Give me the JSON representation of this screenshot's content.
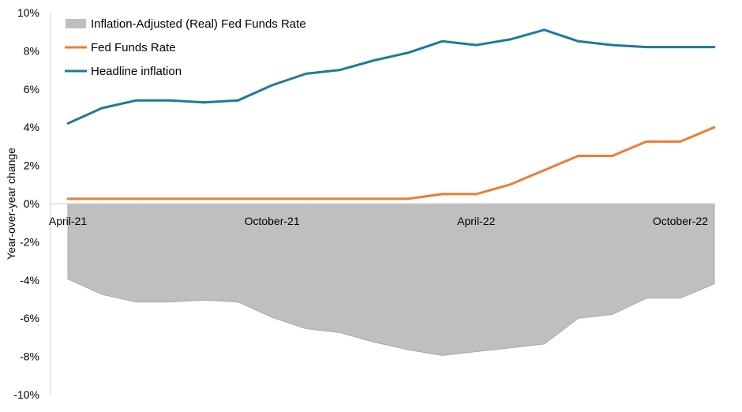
{
  "chart_data": {
    "type": "line",
    "ylabel": "Year-over-year change",
    "x": [
      "Apr-21",
      "May-21",
      "Jun-21",
      "Jul-21",
      "Aug-21",
      "Sep-21",
      "Oct-21",
      "Nov-21",
      "Dec-21",
      "Jan-22",
      "Feb-22",
      "Mar-22",
      "Apr-22",
      "May-22",
      "Jun-22",
      "Jul-22",
      "Aug-22",
      "Sep-22",
      "Oct-22",
      "Nov-22"
    ],
    "x_tick_labels": [
      {
        "index": 0,
        "label": "April-21"
      },
      {
        "index": 6,
        "label": "October-21"
      },
      {
        "index": 12,
        "label": "April-22"
      },
      {
        "index": 18,
        "label": "October-22"
      }
    ],
    "y_ticks": [
      "10%",
      "8%",
      "6%",
      "4%",
      "2%",
      "0%",
      "-2%",
      "-4%",
      "-6%",
      "-8%",
      "-10%"
    ],
    "y_tick_values": [
      10,
      8,
      6,
      4,
      2,
      0,
      -2,
      -4,
      -6,
      -8,
      -10
    ],
    "ylim": [
      -10,
      10
    ],
    "grid": false,
    "legend_position": "top-left",
    "series": [
      {
        "name": "Inflation-Adjusted (Real) Fed Funds Rate",
        "kind": "area",
        "color": "#bfbfbf",
        "values": [
          -3.95,
          -4.75,
          -5.15,
          -5.15,
          -5.05,
          -5.15,
          -5.95,
          -6.55,
          -6.75,
          -7.25,
          -7.65,
          -7.95,
          -7.75,
          -7.55,
          -7.35,
          -6.0,
          -5.8,
          -4.95,
          -4.95,
          -4.2
        ]
      },
      {
        "name": "Fed Funds Rate",
        "kind": "line",
        "color": "#ed7d31",
        "values": [
          0.25,
          0.25,
          0.25,
          0.25,
          0.25,
          0.25,
          0.25,
          0.25,
          0.25,
          0.25,
          0.25,
          0.5,
          0.5,
          1.0,
          1.75,
          2.5,
          2.5,
          3.25,
          3.25,
          4.0
        ]
      },
      {
        "name": "Headline inflation",
        "kind": "line",
        "color": "#1f7a99",
        "values": [
          4.2,
          5.0,
          5.4,
          5.4,
          5.3,
          5.4,
          6.2,
          6.8,
          7.0,
          7.5,
          7.9,
          8.5,
          8.3,
          8.6,
          9.1,
          8.5,
          8.3,
          8.2,
          8.2,
          8.2
        ]
      }
    ]
  }
}
